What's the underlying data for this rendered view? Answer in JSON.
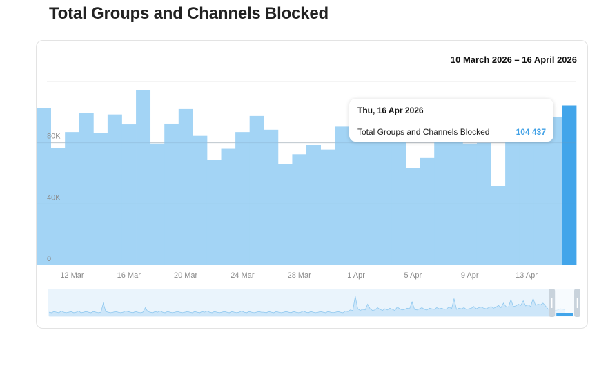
{
  "page": {
    "title": "Total Groups and Channels Blocked"
  },
  "card": {
    "date_range": "10 March 2026 – 16 April 2026"
  },
  "tooltip": {
    "date": "Thu, 16 Apr 2026",
    "series_label": "Total Groups and Channels Blocked",
    "value_text": "104 437"
  },
  "colors": {
    "bar": "#a3d4f5",
    "bar_selected": "#42a5ea",
    "grid": "#e8e8e8",
    "axis_text": "#8a8a8a",
    "navigator_bg": "#eaf4fc",
    "navigator_line": "#b5dbf5"
  },
  "chart_data": {
    "type": "bar",
    "title": "Total Groups and Channels Blocked",
    "categories": [
      "10 Mar",
      "11 Mar",
      "12 Mar",
      "13 Mar",
      "14 Mar",
      "15 Mar",
      "16 Mar",
      "17 Mar",
      "18 Mar",
      "19 Mar",
      "20 Mar",
      "21 Mar",
      "22 Mar",
      "23 Mar",
      "24 Mar",
      "25 Mar",
      "26 Mar",
      "27 Mar",
      "28 Mar",
      "29 Mar",
      "30 Mar",
      "31 Mar",
      "1 Apr",
      "2 Apr",
      "3 Apr",
      "4 Apr",
      "5 Apr",
      "6 Apr",
      "7 Apr",
      "8 Apr",
      "9 Apr",
      "10 Apr",
      "11 Apr",
      "12 Apr",
      "13 Apr",
      "14 Apr",
      "15 Apr",
      "16 Apr"
    ],
    "values": [
      102600,
      76500,
      87000,
      99500,
      86500,
      98500,
      92000,
      114500,
      79500,
      92500,
      102000,
      84500,
      69000,
      76000,
      87000,
      97500,
      88500,
      66000,
      72500,
      78500,
      75500,
      90500,
      85000,
      88000,
      82000,
      97000,
      63500,
      70000,
      88000,
      86500,
      79500,
      80000,
      51500,
      85000,
      96500,
      90000,
      97000,
      104437
    ],
    "selected_index": 37,
    "ylim": [
      0,
      120000
    ],
    "yticks": [
      0,
      40000,
      80000
    ],
    "ytick_labels": [
      "0",
      "40K",
      "80K"
    ],
    "xtick_labels": [
      "12 Mar",
      "16 Mar",
      "20 Mar",
      "24 Mar",
      "28 Mar",
      "1 Apr",
      "5 Apr",
      "9 Apr",
      "13 Apr"
    ],
    "xtick_indices": [
      2,
      6,
      10,
      14,
      18,
      22,
      26,
      30,
      34
    ],
    "grid": true,
    "legend": "none",
    "navigator": {
      "values": [
        6,
        5,
        7,
        6,
        5,
        8,
        6,
        5,
        6,
        7,
        5,
        6,
        8,
        5,
        6,
        7,
        6,
        5,
        7,
        6,
        5,
        6,
        22,
        7,
        6,
        5,
        6,
        7,
        6,
        5,
        6,
        8,
        7,
        6,
        5,
        7,
        6,
        5,
        6,
        14,
        7,
        6,
        5,
        7,
        6,
        8,
        6,
        5,
        7,
        6,
        5,
        6,
        7,
        6,
        5,
        6,
        7,
        6,
        5,
        7,
        6,
        5,
        7,
        6,
        8,
        6,
        5,
        7,
        6,
        5,
        6,
        7,
        6,
        5,
        7,
        6,
        5,
        6,
        8,
        6,
        5,
        7,
        6,
        5,
        6,
        7,
        6,
        6,
        5,
        7,
        6,
        5,
        7,
        6,
        5,
        6,
        7,
        6,
        5,
        7,
        6,
        5,
        6,
        8,
        6,
        5,
        7,
        6,
        5,
        6,
        7,
        6,
        5,
        7,
        6,
        5,
        6,
        7,
        6,
        5,
        8,
        7,
        10,
        9,
        34,
        12,
        9,
        11,
        10,
        20,
        12,
        9,
        10,
        14,
        11,
        9,
        12,
        10,
        13,
        11,
        9,
        15,
        12,
        10,
        11,
        13,
        12,
        24,
        11,
        10,
        12,
        14,
        11,
        10,
        13,
        12,
        11,
        14,
        12,
        13,
        11,
        12,
        15,
        12,
        30,
        11,
        13,
        12,
        14,
        11,
        12,
        13,
        16,
        12,
        14,
        15,
        13,
        12,
        14,
        16,
        13,
        15,
        18,
        14,
        22,
        16,
        15,
        28,
        16,
        17,
        20,
        18,
        26,
        17,
        19,
        16,
        30,
        18,
        20,
        19,
        22,
        17,
        12,
        10,
        11,
        9,
        10,
        12,
        11,
        10
      ],
      "window_start_fraction": 0.965
    }
  }
}
